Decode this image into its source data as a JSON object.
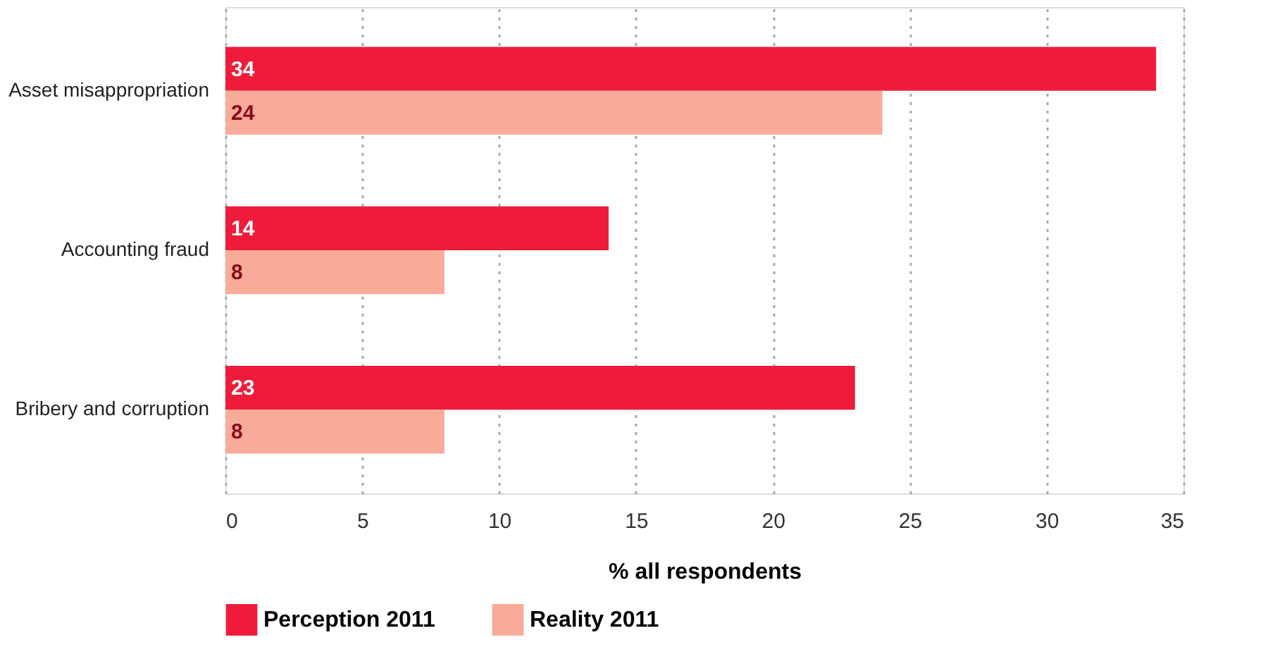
{
  "chart_data": {
    "type": "bar",
    "orientation": "horizontal",
    "xlabel": "% all respondents",
    "categories": [
      "Asset misappropriation",
      "Accounting fraud",
      "Bribery and corruption"
    ],
    "series": [
      {
        "name": "Perception 2011",
        "color": "#ee1c3a",
        "values": [
          34,
          14,
          23
        ]
      },
      {
        "name": "Reality 2011",
        "color": "#f7ab98",
        "values": [
          24,
          8,
          8
        ]
      }
    ],
    "xlim": [
      0,
      35
    ],
    "xticks": [
      0,
      5,
      10,
      15,
      20,
      25,
      30,
      35
    ],
    "grid": "x",
    "legend": "bottom",
    "data_labels": true
  }
}
